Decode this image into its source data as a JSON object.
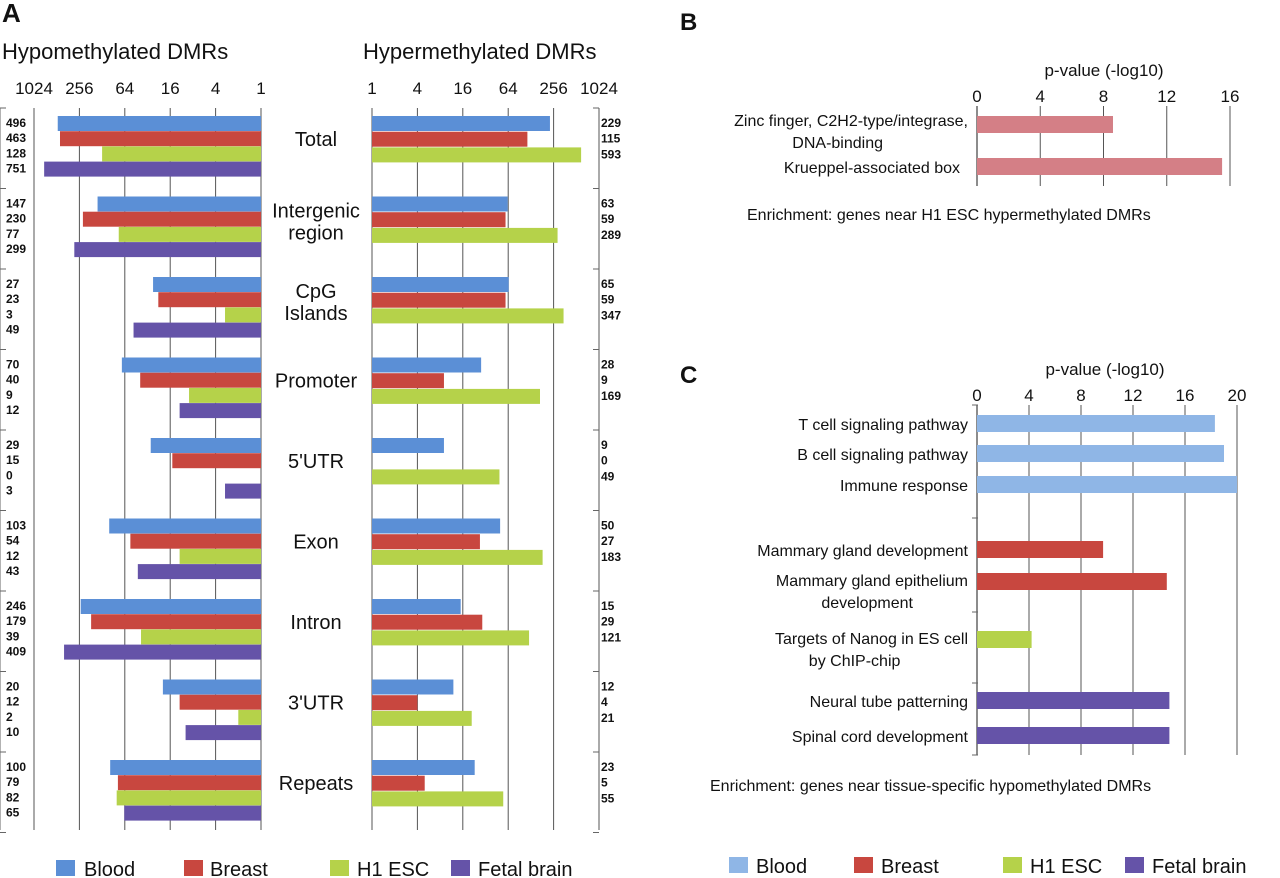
{
  "colors": {
    "blood": "#5b8fd6",
    "breast": "#c8473f",
    "h1esc": "#b5d24a",
    "fetal_brain": "#6553a8",
    "b_bar": "#d47f86",
    "c_blood": "#8fb6e6",
    "axis": "#666666",
    "grid": "#555555"
  },
  "legend": [
    "Blood",
    "Breast",
    "H1 ESC",
    "Fetal brain"
  ],
  "panel_labels": {
    "a": "A",
    "b": "B",
    "c": "C"
  },
  "chart_data": [
    {
      "id": "A",
      "type": "bar",
      "title_left": "Hypomethylated DMRs",
      "title_right": "Hypermethylated DMRs",
      "scale": "log2",
      "xlim": [
        1,
        1024
      ],
      "left_ticks": [
        "1024",
        "256",
        "64",
        "16",
        "4",
        "1"
      ],
      "right_ticks": [
        "1",
        "4",
        "16",
        "64",
        "256",
        "1024"
      ],
      "categories": [
        {
          "label": [
            "Total"
          ],
          "hypo": [
            496,
            463,
            128,
            751
          ],
          "hyper": [
            229,
            115,
            593
          ]
        },
        {
          "label": [
            "Intergenic",
            "region"
          ],
          "hypo": [
            147,
            230,
            77,
            299
          ],
          "hyper": [
            63,
            59,
            289
          ]
        },
        {
          "label": [
            "CpG",
            "Islands"
          ],
          "hypo": [
            27,
            23,
            3,
            49
          ],
          "hyper": [
            65,
            59,
            347
          ]
        },
        {
          "label": [
            "Promoter"
          ],
          "hypo": [
            70,
            40,
            9,
            12
          ],
          "hyper": [
            28,
            9,
            169
          ]
        },
        {
          "label": [
            "5'UTR"
          ],
          "hypo": [
            29,
            15,
            0,
            3
          ],
          "hyper": [
            9,
            0,
            49
          ]
        },
        {
          "label": [
            "Exon"
          ],
          "hypo": [
            103,
            54,
            12,
            43
          ],
          "hyper": [
            50,
            27,
            183
          ]
        },
        {
          "label": [
            "Intron"
          ],
          "hypo": [
            246,
            179,
            39,
            409
          ],
          "hyper": [
            15,
            29,
            121
          ]
        },
        {
          "label": [
            "3'UTR"
          ],
          "hypo": [
            20,
            12,
            2,
            10
          ],
          "hyper": [
            12,
            4,
            21
          ]
        },
        {
          "label": [
            "Repeats"
          ],
          "hypo": [
            100,
            79,
            82,
            65
          ],
          "hyper": [
            23,
            5,
            55
          ]
        }
      ]
    },
    {
      "id": "B",
      "type": "bar",
      "xlabel": "p-value (-log10)",
      "xlim": [
        0,
        16
      ],
      "ticks": [
        "0",
        "4",
        "8",
        "12",
        "16"
      ],
      "caption": "Enrichment: genes near H1 ESC hypermethylated DMRs",
      "bars": [
        {
          "label": [
            "Zinc finger, C2H2-type/integrase,",
            "DNA-binding"
          ],
          "value": 8.6
        },
        {
          "label": [
            "Krueppel-associated box"
          ],
          "value": 15.5
        }
      ]
    },
    {
      "id": "C",
      "type": "bar",
      "xlabel": "p-value (-log10)",
      "xlim": [
        0,
        20
      ],
      "ticks": [
        "0",
        "4",
        "8",
        "12",
        "16",
        "20"
      ],
      "caption": "Enrichment: genes near tissue-specific hypomethylated DMRs",
      "bars": [
        {
          "label": [
            "T cell signaling pathway"
          ],
          "value": 18.3,
          "tissue": "blood"
        },
        {
          "label": [
            "B cell signaling pathway"
          ],
          "value": 19.0,
          "tissue": "blood"
        },
        {
          "label": [
            "Immune response"
          ],
          "value": 20.0,
          "tissue": "blood"
        },
        {
          "label": [
            "Mammary gland development"
          ],
          "value": 9.7,
          "tissue": "breast"
        },
        {
          "label": [
            "Mammary gland epithelium",
            "development"
          ],
          "value": 14.6,
          "tissue": "breast"
        },
        {
          "label": [
            "Targets of Nanog in ES cell",
            "by ChIP-chip"
          ],
          "value": 4.2,
          "tissue": "h1esc"
        },
        {
          "label": [
            "Neural tube patterning"
          ],
          "value": 14.8,
          "tissue": "fetal_brain"
        },
        {
          "label": [
            "Spinal cord development"
          ],
          "value": 14.8,
          "tissue": "fetal_brain"
        }
      ]
    }
  ]
}
